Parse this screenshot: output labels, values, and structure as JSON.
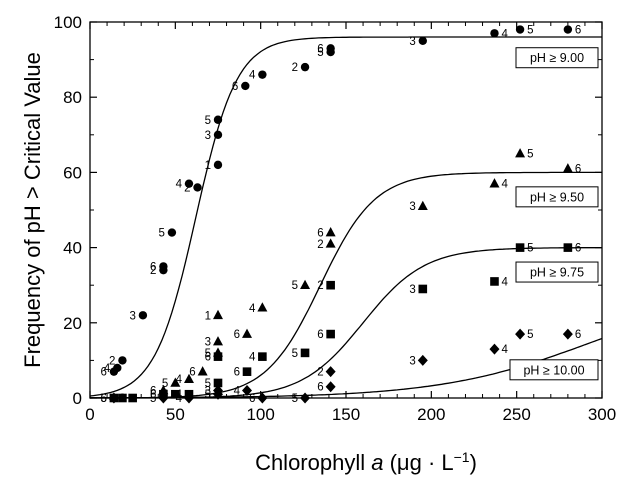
{
  "chart_data": {
    "type": "scatter",
    "xlabel": "Chlorophyll a (μg · L⁻¹)",
    "xlabel_parts": {
      "pre": "Chlorophyll ",
      "italic": "a",
      "post": " (μg · L",
      "sup": "−1",
      "close": ")"
    },
    "ylabel": "Frequency of pH > Critical Value",
    "xlim": [
      0,
      300
    ],
    "ylim": [
      0,
      100
    ],
    "xticks": [
      0,
      50,
      100,
      150,
      200,
      250,
      300
    ],
    "yticks": [
      0,
      20,
      40,
      60,
      80,
      100
    ],
    "grid": false,
    "series": [
      {
        "name": "pH ≥ 9.00",
        "marker": "circle",
        "curve": {
          "k": 96,
          "x0": 62,
          "s": 12
        },
        "points": [
          {
            "x": 14,
            "y": 7,
            "label": "6"
          },
          {
            "x": 16,
            "y": 8,
            "label": "4"
          },
          {
            "x": 19,
            "y": 10,
            "label": "2"
          },
          {
            "x": 31,
            "y": 22,
            "label": "3"
          },
          {
            "x": 43,
            "y": 34,
            "label": "2"
          },
          {
            "x": 43,
            "y": 35,
            "label": "6"
          },
          {
            "x": 48,
            "y": 44,
            "label": "5"
          },
          {
            "x": 58,
            "y": 57,
            "label": "4"
          },
          {
            "x": 63,
            "y": 56,
            "label": "2"
          },
          {
            "x": 75,
            "y": 62,
            "label": "1"
          },
          {
            "x": 75,
            "y": 70,
            "label": "3"
          },
          {
            "x": 75,
            "y": 74,
            "label": "5"
          },
          {
            "x": 91,
            "y": 83,
            "label": "6"
          },
          {
            "x": 101,
            "y": 86,
            "label": "4"
          },
          {
            "x": 126,
            "y": 88,
            "label": "2"
          },
          {
            "x": 141,
            "y": 92,
            "label": "5"
          },
          {
            "x": 141,
            "y": 93,
            "label": "6"
          },
          {
            "x": 195,
            "y": 95,
            "label": "3"
          },
          {
            "x": 237,
            "y": 97,
            "label": "4"
          },
          {
            "x": 252,
            "y": 98,
            "label": "5"
          },
          {
            "x": 280,
            "y": 98,
            "label": "6"
          }
        ]
      },
      {
        "name": "pH ≥ 9.50",
        "marker": "triangle",
        "curve": {
          "k": 60,
          "x0": 135,
          "s": 16
        },
        "points": [
          {
            "x": 43,
            "y": 2,
            "label": "6"
          },
          {
            "x": 50,
            "y": 4,
            "label": "5"
          },
          {
            "x": 58,
            "y": 5,
            "label": "4"
          },
          {
            "x": 66,
            "y": 7,
            "label": "6"
          },
          {
            "x": 75,
            "y": 12,
            "label": "5"
          },
          {
            "x": 75,
            "y": 15,
            "label": "3"
          },
          {
            "x": 75,
            "y": 22,
            "label": "1"
          },
          {
            "x": 92,
            "y": 17,
            "label": "6"
          },
          {
            "x": 101,
            "y": 24,
            "label": "4"
          },
          {
            "x": 126,
            "y": 30,
            "label": "5"
          },
          {
            "x": 141,
            "y": 41,
            "label": "2"
          },
          {
            "x": 141,
            "y": 44,
            "label": "6"
          },
          {
            "x": 195,
            "y": 51,
            "label": "3"
          },
          {
            "x": 237,
            "y": 57,
            "label": "4"
          },
          {
            "x": 252,
            "y": 65,
            "label": "5"
          },
          {
            "x": 280,
            "y": 61,
            "label": "6"
          }
        ]
      },
      {
        "name": "pH ≥ 9.75",
        "marker": "square",
        "curve": {
          "k": 40,
          "x0": 160,
          "s": 18
        },
        "points": [
          {
            "x": 14,
            "y": 0,
            "label": "5"
          },
          {
            "x": 19,
            "y": 0,
            "label": "4"
          },
          {
            "x": 25,
            "y": 0,
            "label": "3"
          },
          {
            "x": 43,
            "y": 1,
            "label": "6"
          },
          {
            "x": 50,
            "y": 1,
            "label": "5"
          },
          {
            "x": 58,
            "y": 1,
            "label": "4"
          },
          {
            "x": 75,
            "y": 4,
            "label": "5"
          },
          {
            "x": 75,
            "y": 11,
            "label": "6"
          },
          {
            "x": 92,
            "y": 7,
            "label": "6"
          },
          {
            "x": 101,
            "y": 11,
            "label": "4"
          },
          {
            "x": 126,
            "y": 12,
            "label": "5"
          },
          {
            "x": 141,
            "y": 17,
            "label": "6"
          },
          {
            "x": 141,
            "y": 30,
            "label": "2"
          },
          {
            "x": 195,
            "y": 29,
            "label": "3"
          },
          {
            "x": 237,
            "y": 31,
            "label": "4"
          },
          {
            "x": 252,
            "y": 40,
            "label": "5"
          },
          {
            "x": 280,
            "y": 40,
            "label": "6"
          }
        ]
      },
      {
        "name": "pH ≥ 10.00",
        "marker": "diamond",
        "curve": {
          "k": 30,
          "x0": 295,
          "s": 45
        },
        "points": [
          {
            "x": 14,
            "y": 0,
            "label": "6"
          },
          {
            "x": 43,
            "y": 0,
            "label": "5"
          },
          {
            "x": 58,
            "y": 0,
            "label": "4"
          },
          {
            "x": 75,
            "y": 1,
            "label": "5"
          },
          {
            "x": 75,
            "y": 2,
            "label": "3"
          },
          {
            "x": 92,
            "y": 2,
            "label": "4"
          },
          {
            "x": 101,
            "y": 0,
            "label": "6"
          },
          {
            "x": 126,
            "y": 0,
            "label": "5"
          },
          {
            "x": 141,
            "y": 3,
            "label": "6"
          },
          {
            "x": 141,
            "y": 7,
            "label": "2"
          },
          {
            "x": 195,
            "y": 10,
            "label": "3"
          },
          {
            "x": 237,
            "y": 13,
            "label": "4"
          },
          {
            "x": 252,
            "y": 17,
            "label": "5"
          },
          {
            "x": 280,
            "y": 17,
            "label": "6"
          }
        ]
      }
    ]
  }
}
